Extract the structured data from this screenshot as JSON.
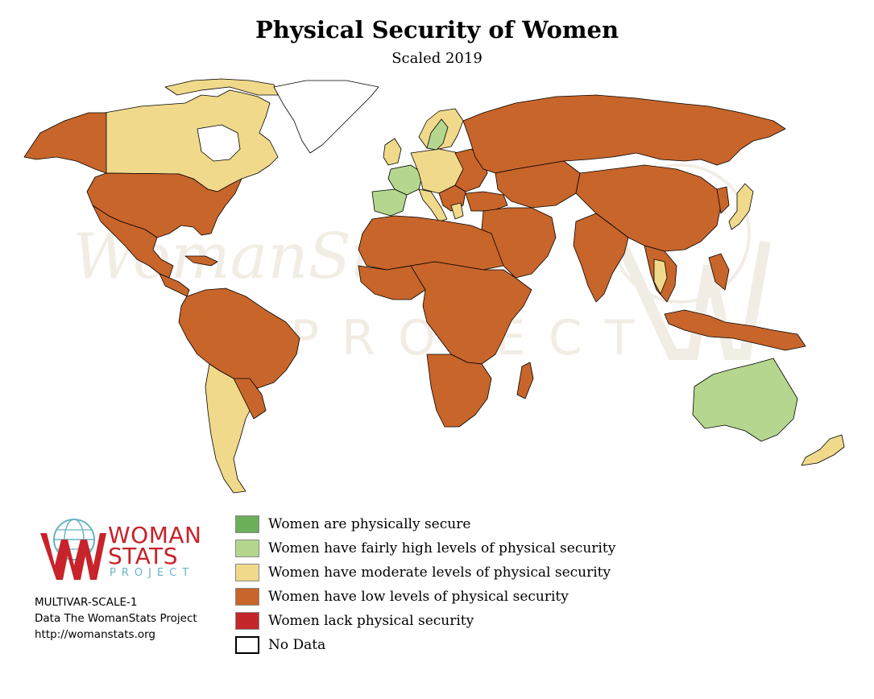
{
  "title": "Physical Security of Women",
  "subtitle": "Scaled 2019",
  "legend": [
    {
      "label": "Women are physically secure",
      "color": "#6aaf5a"
    },
    {
      "label": "Women have fairly high levels of physical security",
      "color": "#b5d68e"
    },
    {
      "label": "Women have moderate levels of physical security",
      "color": "#f0d98a"
    },
    {
      "label": "Women have low levels of physical security",
      "color": "#c8652a"
    },
    {
      "label": "Women lack physical security",
      "color": "#c4262a"
    },
    {
      "label": "No Data",
      "color": "#ffffff"
    }
  ],
  "logo": {
    "line1": "WOMAN",
    "line2": "STATS",
    "line3": "PROJECT"
  },
  "credits": {
    "code": "MULTIVAR-SCALE-1",
    "source": "Data The WomanStats Project",
    "url": "http://womanstats.org"
  },
  "colors": {
    "low": "#c8652a",
    "moderate": "#f0d98a",
    "fairly_high": "#b5d68e",
    "secure": "#6aaf5a",
    "lack": "#c4262a",
    "no_data": "#ffffff",
    "logo_red": "#c8222a",
    "logo_blue": "#69b3c4"
  }
}
